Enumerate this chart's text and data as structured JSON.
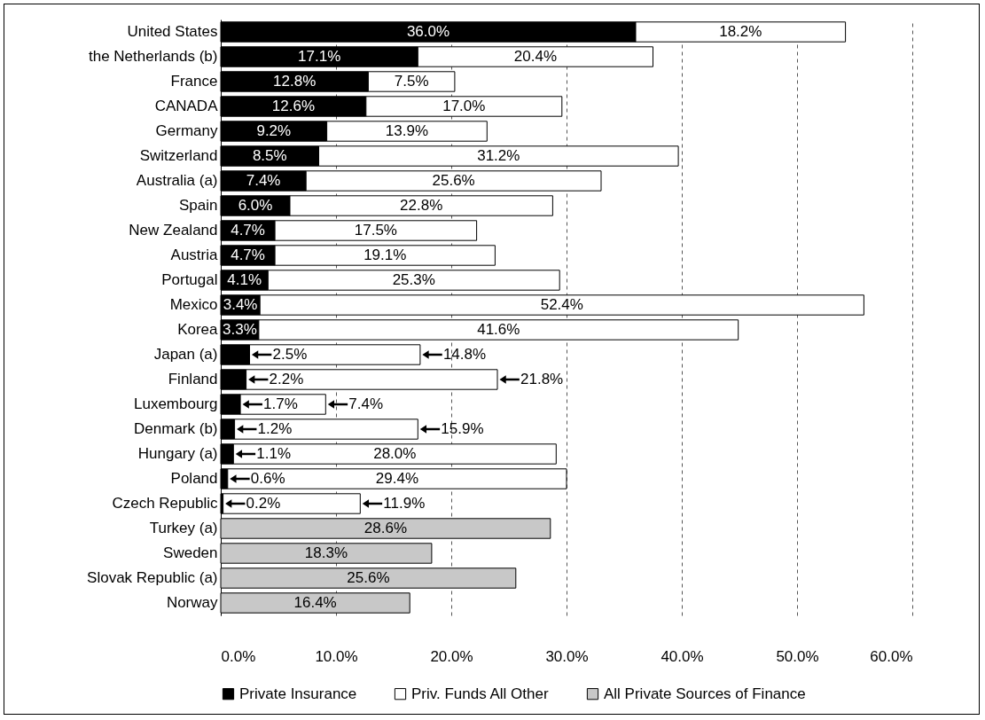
{
  "chart_data": {
    "type": "bar",
    "orientation": "horizontal",
    "stacked": true,
    "categories": [
      "United States",
      "the Netherlands (b)",
      "France",
      "CANADA",
      "Germany",
      "Switzerland",
      "Australia (a)",
      "Spain",
      "New Zealand",
      "Austria",
      "Portugal",
      "Mexico",
      "Korea",
      "Japan (a)",
      "Finland",
      "Luxembourg",
      "Denmark (b)",
      "Hungary (a)",
      "Poland",
      "Czech Republic",
      "Turkey (a)",
      "Sweden",
      "Slovak Republic (a)",
      "Norway"
    ],
    "series": [
      {
        "name": "Private Insurance",
        "color": "#000000",
        "values": [
          36.0,
          17.1,
          12.8,
          12.6,
          9.2,
          8.5,
          7.4,
          6.0,
          4.7,
          4.7,
          4.1,
          3.4,
          3.3,
          2.5,
          2.2,
          1.7,
          1.2,
          1.1,
          0.6,
          0.2,
          null,
          null,
          null,
          null
        ],
        "value_labels": [
          "36.0%",
          "17.1%",
          "12.8%",
          "12.6%",
          "9.2%",
          "8.5%",
          "7.4%",
          "6.0%",
          "4.7%",
          "4.7%",
          "4.1%",
          "3.4%",
          "3.3%",
          "2.5%",
          "2.2%",
          "1.7%",
          "1.2%",
          "1.1%",
          "0.6%",
          "0.2%",
          null,
          null,
          null,
          null
        ]
      },
      {
        "name": "Priv. Funds All Other",
        "color": "#ffffff",
        "values": [
          18.2,
          20.4,
          7.5,
          17.0,
          13.9,
          31.2,
          25.6,
          22.8,
          17.5,
          19.1,
          25.3,
          52.4,
          41.6,
          14.8,
          21.8,
          7.4,
          15.9,
          28.0,
          29.4,
          11.9,
          null,
          null,
          null,
          null
        ],
        "value_labels": [
          "18.2%",
          "20.4%",
          "7.5%",
          "17.0%",
          "13.9%",
          "31.2%",
          "25.6%",
          "22.8%",
          "17.5%",
          "19.1%",
          "25.3%",
          "52.4%",
          "41.6%",
          "14.8%",
          "21.8%",
          "7.4%",
          "15.9%",
          "28.0%",
          "29.4%",
          "11.9%",
          null,
          null,
          null,
          null
        ]
      },
      {
        "name": "All Private Sources of Finance",
        "color": "#c8c8c8",
        "values": [
          null,
          null,
          null,
          null,
          null,
          null,
          null,
          null,
          null,
          null,
          null,
          null,
          null,
          null,
          null,
          null,
          null,
          null,
          null,
          null,
          28.6,
          18.3,
          25.6,
          16.4
        ],
        "value_labels": [
          null,
          null,
          null,
          null,
          null,
          null,
          null,
          null,
          null,
          null,
          null,
          null,
          null,
          null,
          null,
          null,
          null,
          null,
          null,
          null,
          "28.6%",
          "18.3%",
          "25.6%",
          "16.4%"
        ]
      }
    ],
    "xlim": [
      0,
      60
    ],
    "xticks": [
      {
        "value": 0,
        "label": "0.0%"
      },
      {
        "value": 10,
        "label": "10.0%"
      },
      {
        "value": 20,
        "label": "20.0%"
      },
      {
        "value": 30,
        "label": "30.0%"
      },
      {
        "value": 40,
        "label": "40.0%"
      },
      {
        "value": 50,
        "label": "50.0%"
      },
      {
        "value": 60,
        "label": "60.0%"
      }
    ],
    "grid": "x",
    "legend": "bottom"
  }
}
